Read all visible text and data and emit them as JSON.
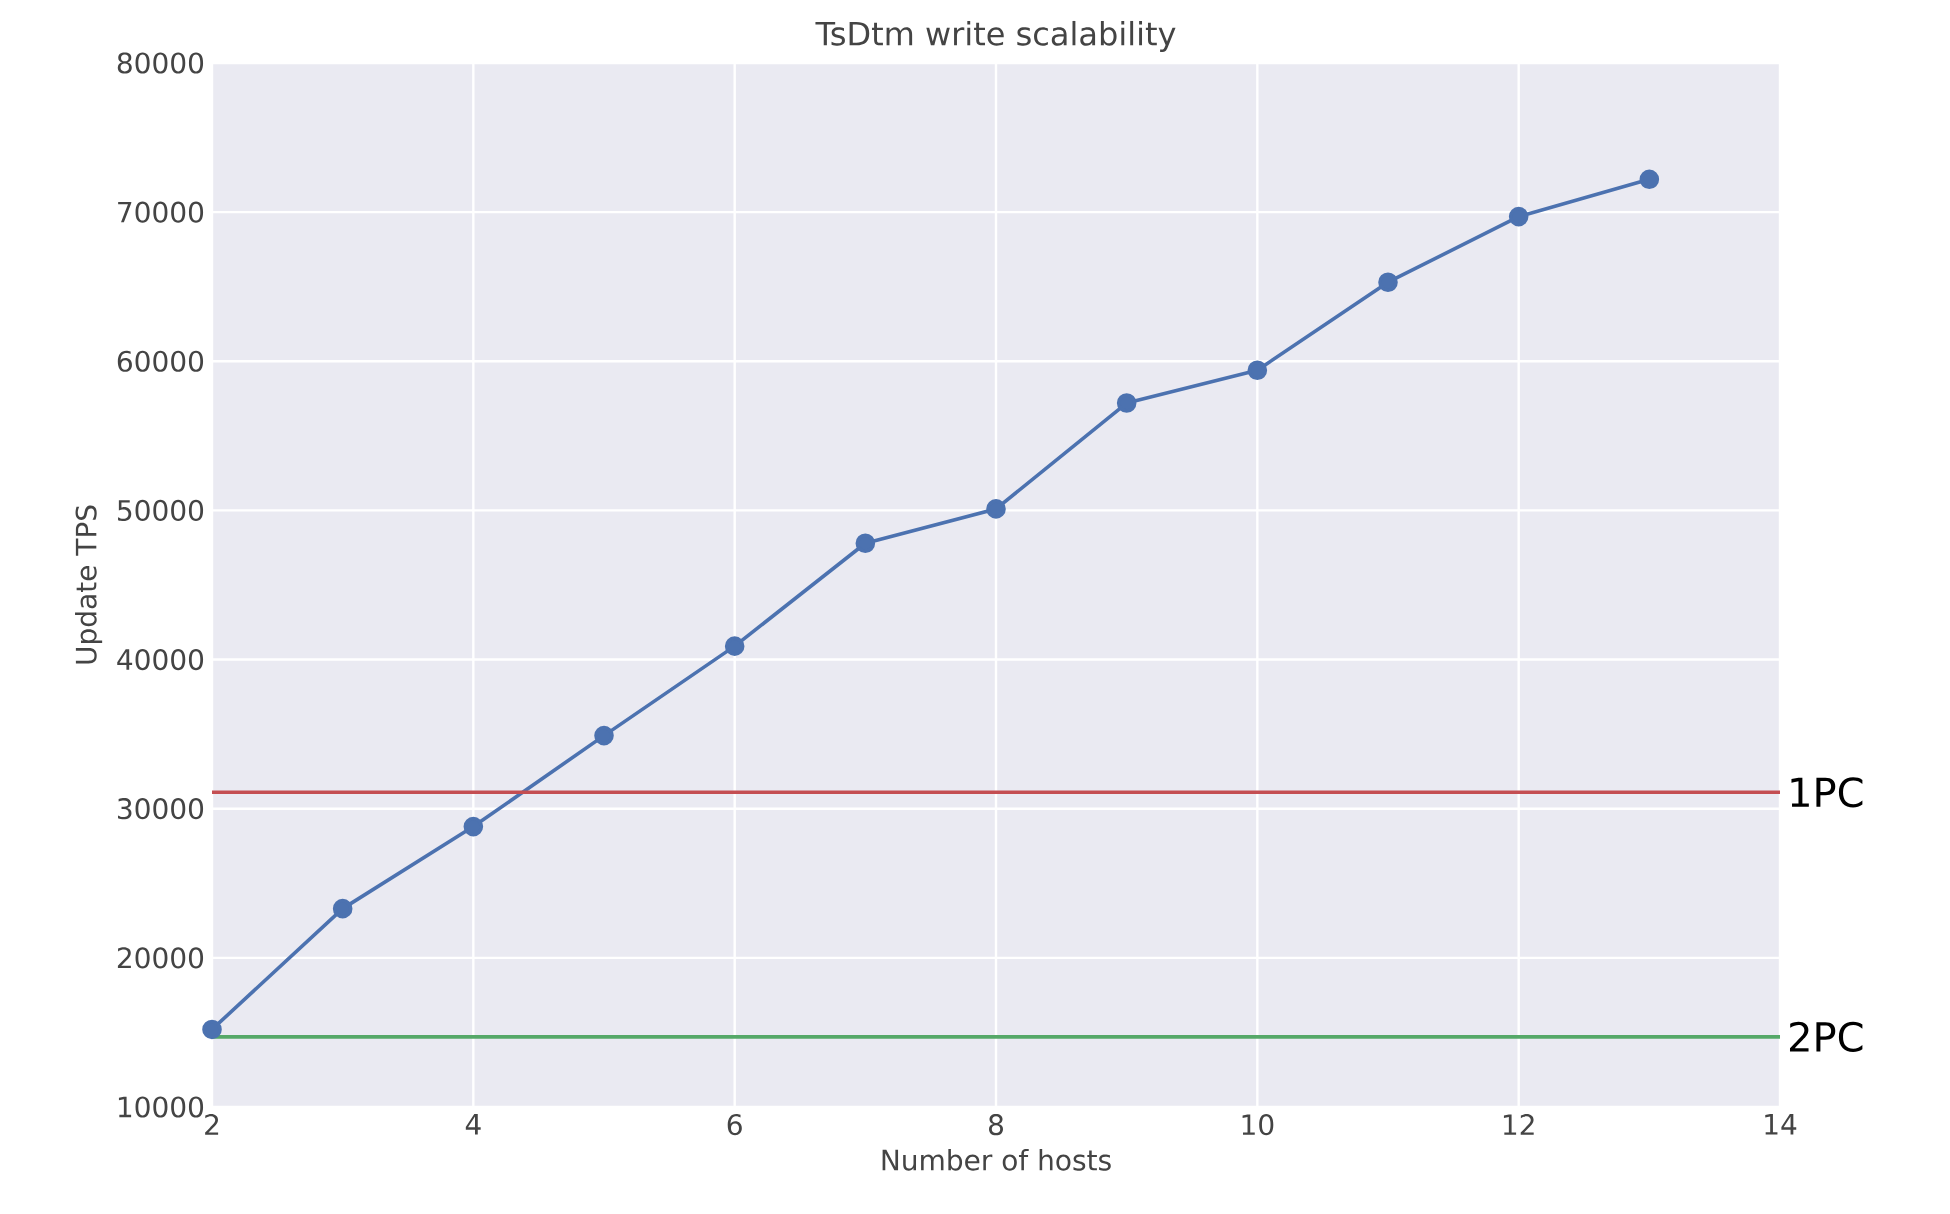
{
  "chart_data": {
    "type": "line",
    "title": "TsDtm write scalability",
    "xlabel": "Number of hosts",
    "ylabel": "Update TPS",
    "x": [
      2,
      3,
      4,
      5,
      6,
      7,
      8,
      9,
      10,
      11,
      12,
      13
    ],
    "series": [
      {
        "color": "#4c72b0",
        "values": [
          15200,
          23300,
          28800,
          34900,
          40900,
          47800,
          50100,
          57200,
          59400,
          65300,
          69700,
          72200
        ]
      }
    ],
    "xlim": [
      2,
      14
    ],
    "xticks": [
      2,
      4,
      6,
      8,
      10,
      12,
      14
    ],
    "ylim": [
      10000,
      80000
    ],
    "yticks": [
      10000,
      20000,
      30000,
      40000,
      50000,
      60000,
      70000,
      80000
    ],
    "ref_lines": [
      {
        "axis": "y",
        "value": 31100,
        "label": "1PC",
        "color": "#c44e52"
      },
      {
        "axis": "y",
        "value": 14700,
        "label": "2PC",
        "color": "#55a868"
      }
    ],
    "grid": true,
    "marker": "circle",
    "line_style": "solid"
  }
}
